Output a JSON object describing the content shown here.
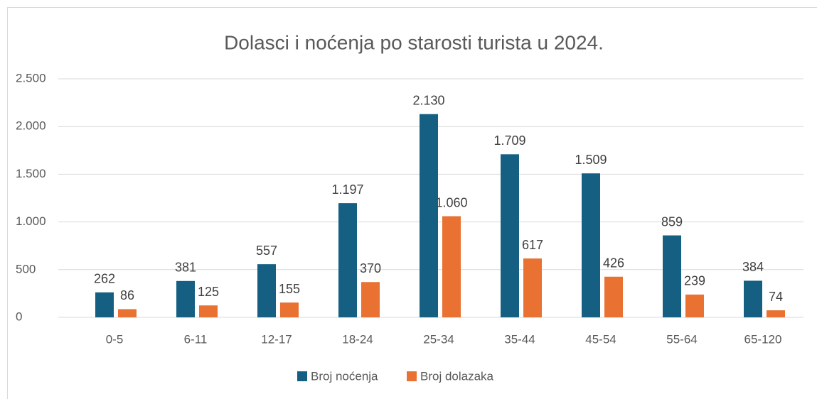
{
  "chart_data": {
    "type": "bar",
    "title": "Dolasci i noćenja po starosti turista u 2024.",
    "categories": [
      "0-5",
      "6-11",
      "12-17",
      "18-24",
      "25-34",
      "35-44",
      "45-54",
      "55-64",
      "65-120"
    ],
    "series": [
      {
        "name": "Broj noćenja",
        "color": "#156082",
        "values": [
          262,
          381,
          557,
          1197,
          2130,
          1709,
          1509,
          859,
          384
        ],
        "value_labels": [
          "262",
          "381",
          "557",
          "1.197",
          "2.130",
          "1.709",
          "1.509",
          "859",
          "384"
        ]
      },
      {
        "name": "Broj dolazaka",
        "color": "#e97132",
        "values": [
          86,
          125,
          155,
          370,
          1060,
          617,
          426,
          239,
          74
        ],
        "value_labels": [
          "86",
          "125",
          "155",
          "370",
          "1.060",
          "617",
          "426",
          "239",
          "74"
        ]
      }
    ],
    "ylim": [
      0,
      2500
    ],
    "yticks": [
      0,
      500,
      {
        "value": 1000,
        "label": "1.000"
      },
      {
        "value": 1500,
        "label": "1.500"
      },
      {
        "value": 2000,
        "label": "2.000"
      },
      {
        "value": 2500,
        "label": "2.500"
      }
    ],
    "grid": true,
    "legend": "bottom"
  }
}
